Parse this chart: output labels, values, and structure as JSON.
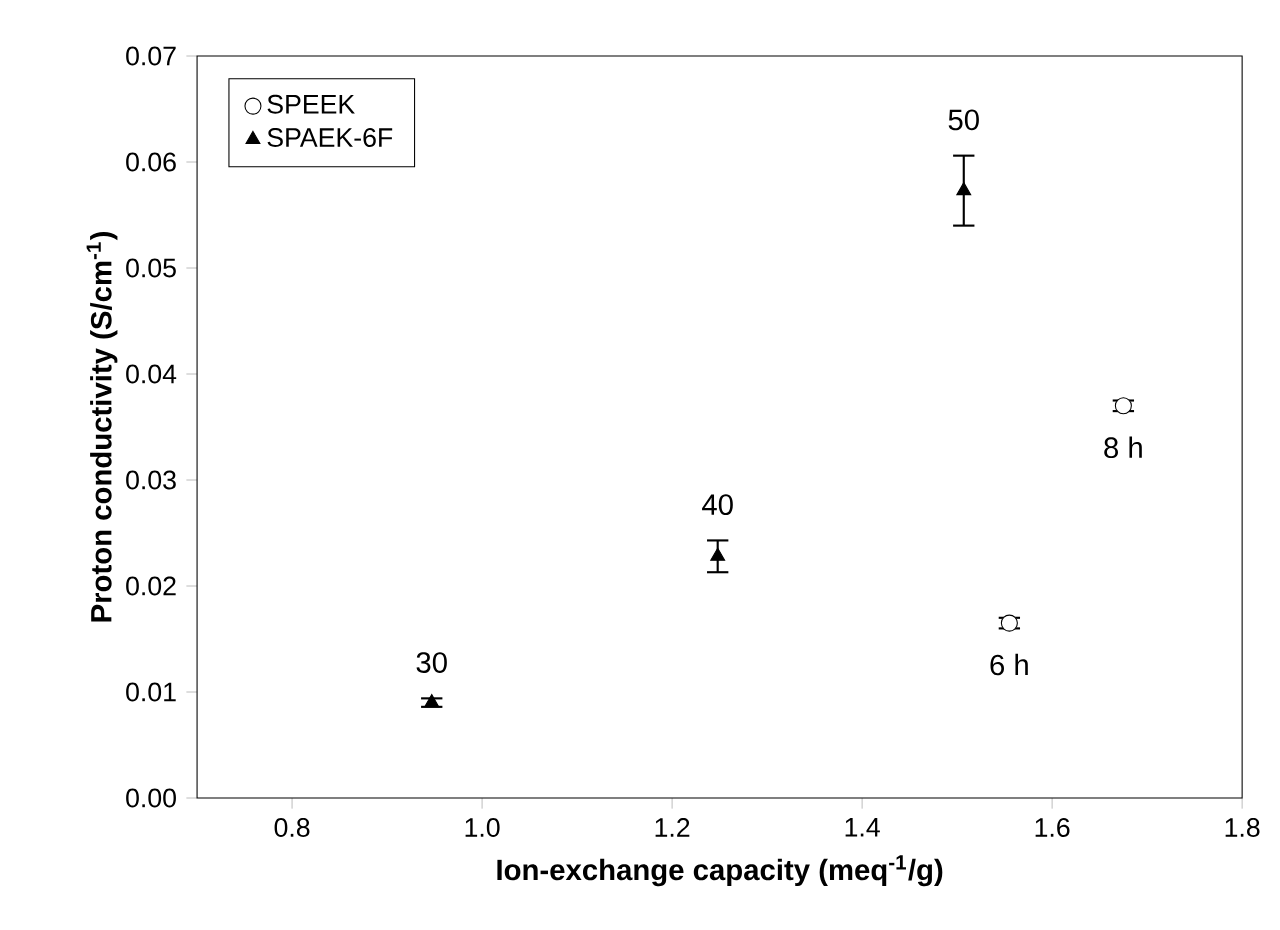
{
  "chart_data": {
    "type": "scatter",
    "xlabel": "Ion-exchange capacity (meq$^{-1}$/g)",
    "ylabel": "Proton conductivity (S/cm$^{-1}$)",
    "xlim": [
      0.7,
      1.8
    ],
    "ylim": [
      0,
      0.07
    ],
    "xticks": [
      {
        "value": 0.8,
        "label": "0.8"
      },
      {
        "value": 1.0,
        "label": "1.0"
      },
      {
        "value": 1.2,
        "label": "1.2"
      },
      {
        "value": 1.4,
        "label": "1.4"
      },
      {
        "value": 1.6,
        "label": "1.6"
      },
      {
        "value": 1.8,
        "label": "1.8"
      }
    ],
    "yticks": [
      {
        "value": 0,
        "label": "0.00"
      },
      {
        "value": 0.01,
        "label": "0.01"
      },
      {
        "value": 0.02,
        "label": "0.02"
      },
      {
        "value": 0.03,
        "label": "0.03"
      },
      {
        "value": 0.04,
        "label": "0.04"
      },
      {
        "value": 0.05,
        "label": "0.05"
      },
      {
        "value": 0.06,
        "label": "0.06"
      },
      {
        "value": 0.07,
        "label": "0.07"
      }
    ],
    "legend": "top left",
    "grid": false,
    "series": [
      {
        "name": "SPEEK",
        "color": "#000000",
        "marker": "circle",
        "x": [
          1.555,
          1.675
        ],
        "values": [
          0.0165,
          0.037
        ],
        "errors": [
          0.0005,
          0.0005
        ]
      },
      {
        "name": "SPAEK-6F",
        "color": "#000000",
        "marker": "triangle",
        "x": [
          0.947,
          1.248,
          1.507
        ],
        "values": [
          0.009,
          0.0228,
          0.0573
        ],
        "errors": [
          0.0004,
          0.0015,
          0.0033
        ]
      }
    ],
    "annotations": [
      {
        "text": "30",
        "x": 0.947,
        "y": 0.009
      },
      {
        "text": "40",
        "x": 1.248,
        "y": 0.0228
      },
      {
        "text": "50",
        "x": 1.507,
        "y": 0.0573
      },
      {
        "text": "6 h",
        "x": 1.555,
        "y": 0.0165
      },
      {
        "text": "8 h",
        "x": 1.675,
        "y": 0.037
      }
    ]
  }
}
